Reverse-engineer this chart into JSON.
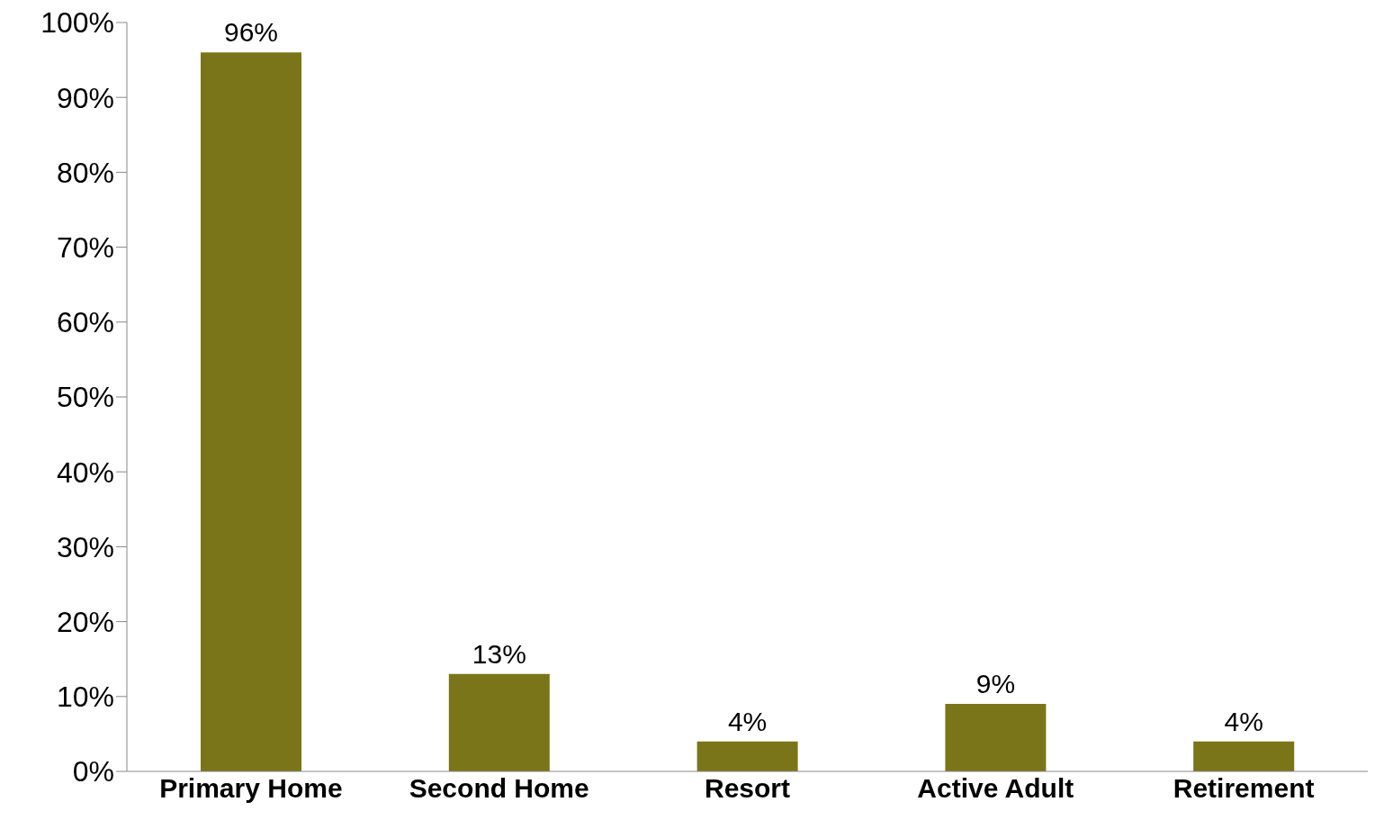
{
  "chart_data": {
    "type": "bar",
    "categories": [
      "Primary Home",
      "Second Home",
      "Resort",
      "Active Adult",
      "Retirement"
    ],
    "values": [
      96,
      13,
      4,
      9,
      4
    ],
    "value_labels": [
      "96%",
      "13%",
      "4%",
      "9%",
      "4%"
    ],
    "color": "#7a7518",
    "ylim": [
      0,
      100
    ],
    "yticks": [
      {
        "value": 0,
        "label": "0%"
      },
      {
        "value": 10,
        "label": "10%"
      },
      {
        "value": 20,
        "label": "20%"
      },
      {
        "value": 30,
        "label": "30%"
      },
      {
        "value": 40,
        "label": "40%"
      },
      {
        "value": 50,
        "label": "50%"
      },
      {
        "value": 60,
        "label": "60%"
      },
      {
        "value": 70,
        "label": "70%"
      },
      {
        "value": 80,
        "label": "80%"
      },
      {
        "value": 90,
        "label": "90%"
      },
      {
        "value": 100,
        "label": "100%"
      }
    ],
    "grid": false,
    "legend": false
  }
}
